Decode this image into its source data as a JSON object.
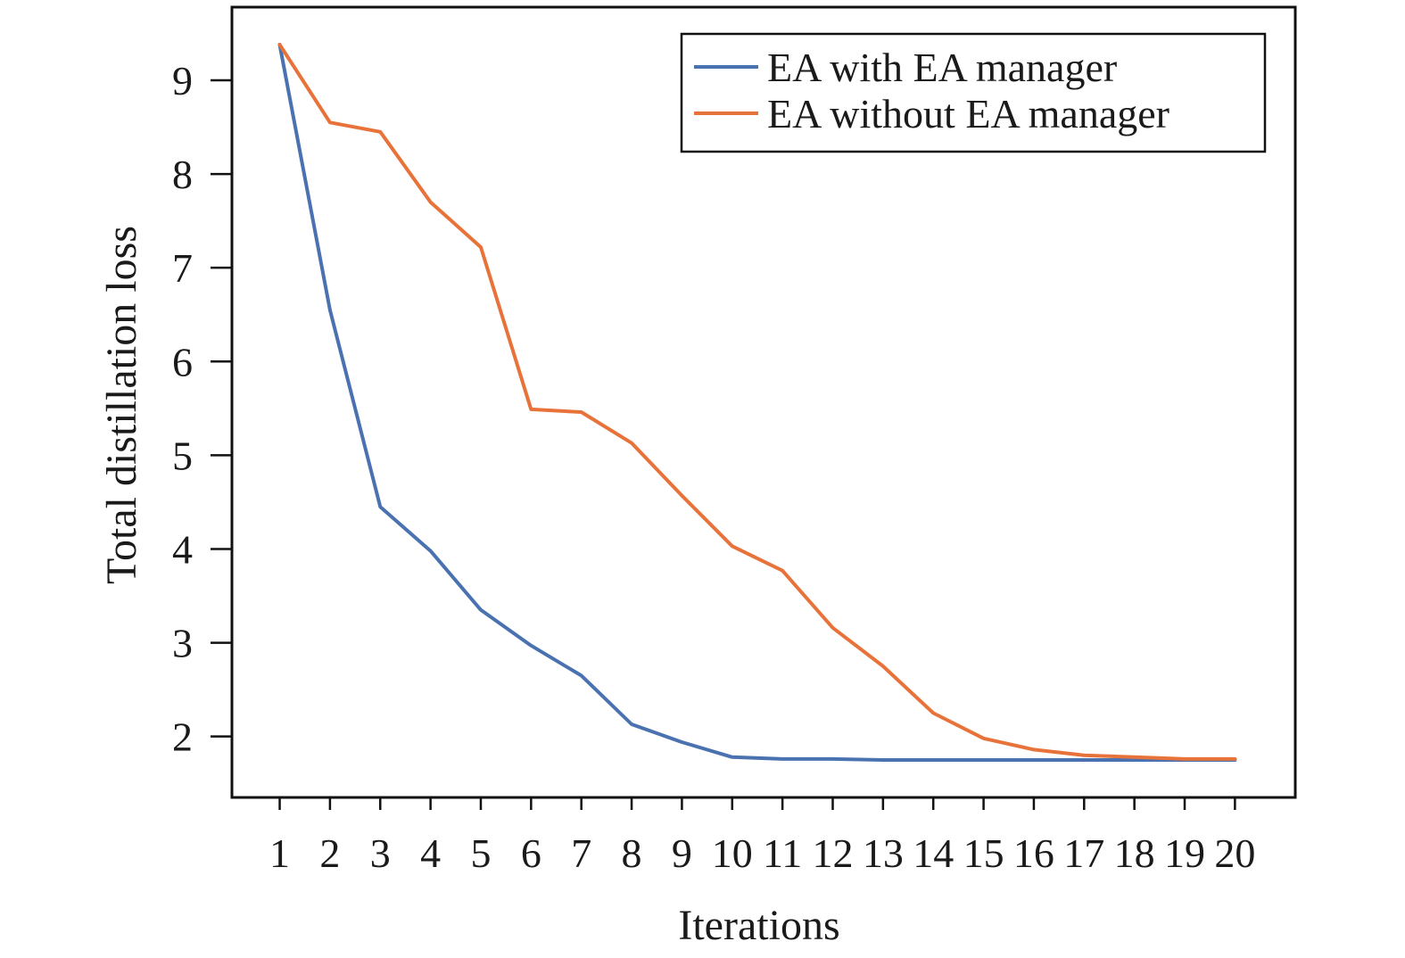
{
  "chart_data": {
    "type": "line",
    "xlabel": "Iterations",
    "ylabel": "Total distillation loss",
    "x": [
      1,
      2,
      3,
      4,
      5,
      6,
      7,
      8,
      9,
      10,
      11,
      12,
      13,
      14,
      15,
      16,
      17,
      18,
      19,
      20
    ],
    "xlim": [
      0.05,
      21.2
    ],
    "ylim": [
      1.35,
      9.78
    ],
    "yticks": [
      2,
      3,
      4,
      5,
      6,
      7,
      8,
      9
    ],
    "legend_position": "top-right",
    "grid": false,
    "series": [
      {
        "name": "EA with EA manager",
        "color": "#4a72b0",
        "values": [
          9.38,
          6.55,
          4.45,
          3.98,
          3.35,
          2.97,
          2.65,
          2.13,
          1.94,
          1.78,
          1.76,
          1.76,
          1.75,
          1.75,
          1.75,
          1.75,
          1.75,
          1.75,
          1.75,
          1.75
        ]
      },
      {
        "name": "EA without EA manager",
        "color": "#e8733a",
        "values": [
          9.38,
          8.55,
          8.45,
          7.7,
          7.22,
          5.49,
          5.46,
          5.13,
          4.57,
          4.03,
          3.77,
          3.16,
          2.75,
          2.25,
          1.98,
          1.86,
          1.8,
          1.78,
          1.76,
          1.76
        ]
      }
    ]
  }
}
